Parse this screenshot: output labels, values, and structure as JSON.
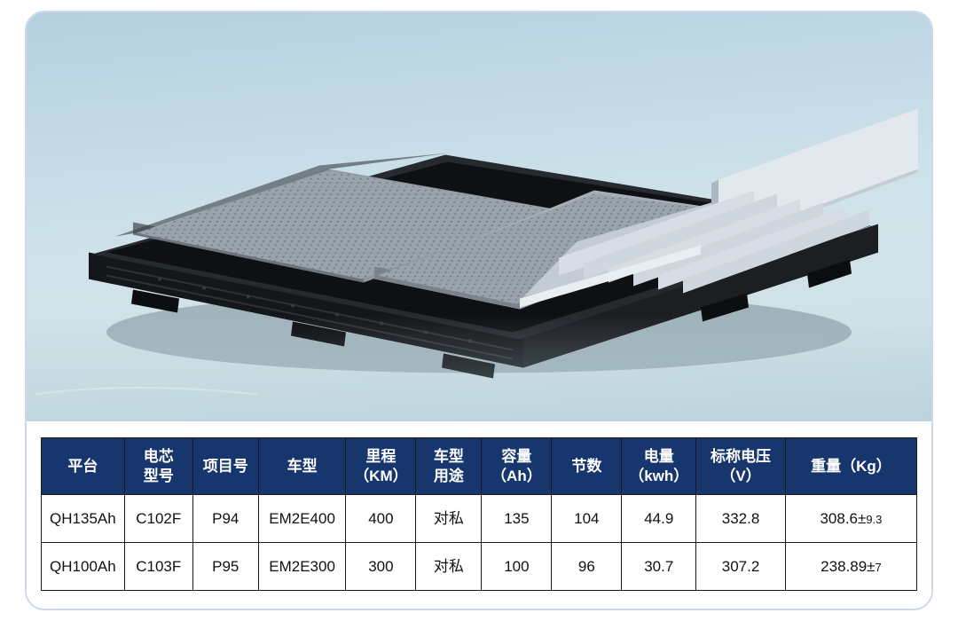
{
  "table": {
    "header_bg": "#16366d",
    "header_color": "#ffffff",
    "border_color": "#1a1a1a",
    "columns": [
      {
        "key": "platform",
        "label": "平台",
        "width": "9.5%"
      },
      {
        "key": "cell_model",
        "label": "电芯\n型号",
        "width": "7.8%"
      },
      {
        "key": "project",
        "label": "项目号",
        "width": "7.5%"
      },
      {
        "key": "vehicle",
        "label": "车型",
        "width": "10%"
      },
      {
        "key": "range",
        "label": "里程\n（KM）",
        "width": "8%"
      },
      {
        "key": "usage",
        "label": "车型\n用途",
        "width": "7.5%"
      },
      {
        "key": "capacity",
        "label": "容量\n（Ah）",
        "width": "8%"
      },
      {
        "key": "cells",
        "label": "节数",
        "width": "8%"
      },
      {
        "key": "energy",
        "label": "电量\n（kwh）",
        "width": "8.5%"
      },
      {
        "key": "voltage",
        "label": "标称电压\n（V）",
        "width": "10.2%"
      },
      {
        "key": "weight",
        "label": "重量（Kg）",
        "width": "15%"
      }
    ],
    "rows": [
      {
        "platform": "QH135Ah",
        "cell_model": "C102F",
        "project": "P94",
        "vehicle": "EM2E400",
        "range": "400",
        "usage": "对私",
        "capacity": "135",
        "cells": "104",
        "energy": "44.9",
        "voltage": "332.8",
        "weight": "308.6±",
        "weight_tol": "9.3"
      },
      {
        "platform": "QH100Ah",
        "cell_model": "C103F",
        "project": "P95",
        "vehicle": "EM2E300",
        "range": "300",
        "usage": "对私",
        "capacity": "100",
        "cells": "96",
        "energy": "30.7",
        "voltage": "307.2",
        "weight": "238.89±",
        "weight_tol": "7"
      }
    ]
  },
  "hero": {
    "bg_gradient_top": "#b6cfde",
    "bg_gradient_bottom": "#c3d8e0",
    "tray_color": "#0d0e10",
    "tray_highlight": "#2a2d32",
    "panel_color": "#9aa4ae",
    "panel_light": "#c8d0d8",
    "fin_color": "#d5dde5",
    "fin_edge": "#aeb8c2"
  }
}
